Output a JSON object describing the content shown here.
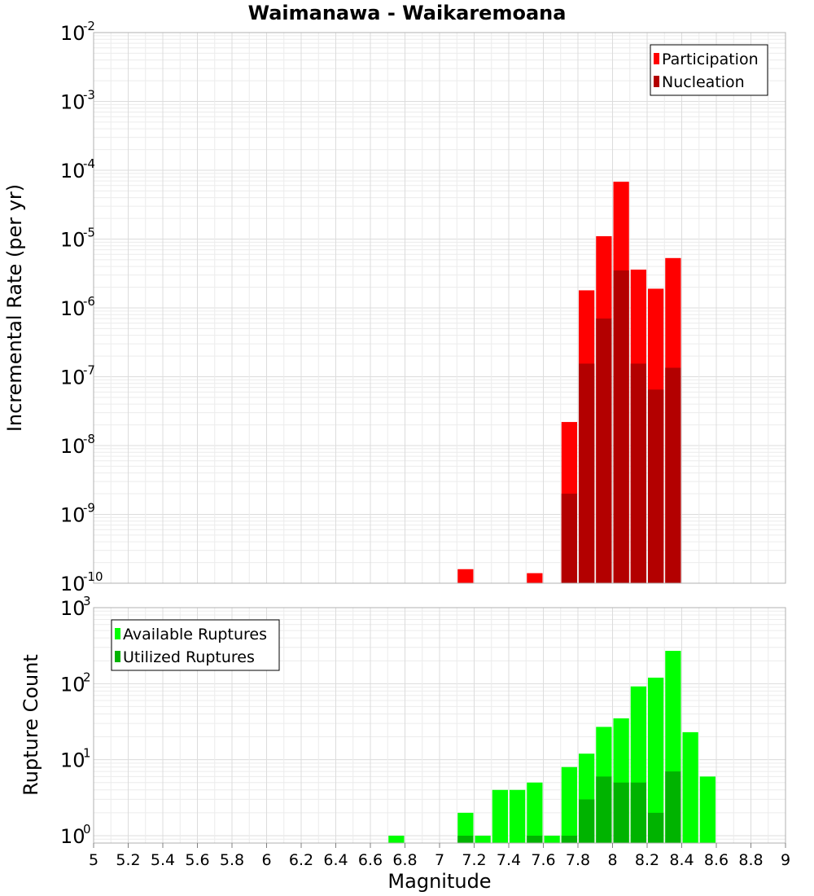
{
  "title": "Waimanawa - Waikaremoana",
  "xlabel": "Magnitude",
  "x_ticks": [
    "5",
    "5.2",
    "5.4",
    "5.6",
    "5.8",
    "6",
    "6.2",
    "6.4",
    "6.6",
    "6.8",
    "7",
    "7.2",
    "7.4",
    "7.6",
    "7.8",
    "8",
    "8.2",
    "8.4",
    "8.6",
    "8.8",
    "9"
  ],
  "chart_data": [
    {
      "type": "bar",
      "ylabel": "Incremental Rate (per yr)",
      "yscale": "log",
      "ylim": [
        1e-10,
        0.01
      ],
      "xlim": [
        5,
        9
      ],
      "y_ticks": [
        {
          "base": "10",
          "exp": "-10"
        },
        {
          "base": "10",
          "exp": "-9"
        },
        {
          "base": "10",
          "exp": "-8"
        },
        {
          "base": "10",
          "exp": "-7"
        },
        {
          "base": "10",
          "exp": "-6"
        },
        {
          "base": "10",
          "exp": "-5"
        },
        {
          "base": "10",
          "exp": "-4"
        },
        {
          "base": "10",
          "exp": "-3"
        },
        {
          "base": "10",
          "exp": "-2"
        }
      ],
      "bar_width": 0.1,
      "legend_position": "top-right",
      "grid": true,
      "series": [
        {
          "name": "Participation",
          "color": "#ff0000",
          "x": [
            7.15,
            7.55,
            7.75,
            7.85,
            7.95,
            8.05,
            8.15,
            8.25,
            8.35
          ],
          "values": [
            1.6e-10,
            1.4e-10,
            2.2e-08,
            1.8e-06,
            1.1e-05,
            6.8e-05,
            3.6e-06,
            1.9e-06,
            5.3e-06
          ]
        },
        {
          "name": "Nucleation",
          "color": "#b30000",
          "x": [
            7.75,
            7.85,
            7.95,
            8.05,
            8.15,
            8.25,
            8.35
          ],
          "values": [
            2e-09,
            1.55e-07,
            7e-07,
            3.5e-06,
            1.55e-07,
            6.5e-08,
            1.35e-07
          ]
        }
      ]
    },
    {
      "type": "bar",
      "ylabel": "Rupture Count",
      "yscale": "log",
      "ylim": [
        0.8,
        1000
      ],
      "xlim": [
        5,
        9
      ],
      "y_ticks": [
        {
          "base": "10",
          "exp": "0"
        },
        {
          "base": "10",
          "exp": "1"
        },
        {
          "base": "10",
          "exp": "2"
        },
        {
          "base": "10",
          "exp": "3"
        }
      ],
      "bar_width": 0.1,
      "legend_position": "top-left",
      "grid": true,
      "series": [
        {
          "name": "Available Ruptures",
          "color": "#00ff00",
          "x": [
            6.75,
            7.15,
            7.25,
            7.35,
            7.45,
            7.55,
            7.65,
            7.75,
            7.85,
            7.95,
            8.05,
            8.15,
            8.25,
            8.35,
            8.45,
            8.55
          ],
          "values": [
            1,
            2,
            1,
            4,
            4,
            5,
            1,
            8,
            12,
            27,
            35,
            92,
            120,
            270,
            23,
            6
          ]
        },
        {
          "name": "Utilized Ruptures",
          "color": "#00b300",
          "x": [
            7.15,
            7.55,
            7.75,
            7.85,
            7.95,
            8.05,
            8.15,
            8.25,
            8.35
          ],
          "values": [
            1,
            1,
            1,
            3,
            6,
            5,
            5,
            2,
            7
          ]
        }
      ]
    }
  ]
}
